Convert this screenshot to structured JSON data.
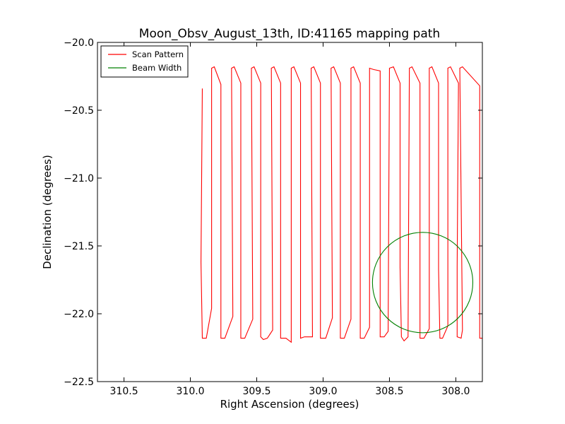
{
  "chart_data": {
    "type": "line",
    "title": "Moon_Obsv_August_13th, ID:41165 mapping path",
    "xlabel": "Right Ascension (degrees)",
    "ylabel": "Declination (degrees)",
    "xlim": [
      310.7,
      307.8
    ],
    "ylim": [
      -22.5,
      -20.0
    ],
    "x_inverted": true,
    "x_ticks": [
      310.5,
      310.0,
      309.5,
      309.0,
      308.5,
      308.0
    ],
    "x_tick_labels": [
      "310.5",
      "310.0",
      "309.5",
      "309.0",
      "308.5",
      "308.0"
    ],
    "y_ticks": [
      -20.0,
      -20.5,
      -21.0,
      -21.5,
      -22.0,
      -22.5
    ],
    "y_tick_labels": [
      "−20.0",
      "−20.5",
      "−21.0",
      "−21.5",
      "−22.0",
      "−22.5"
    ],
    "grid": false,
    "legend": {
      "placement": "top-left",
      "entries": [
        {
          "label": "Scan Pattern",
          "color": "#ff0000"
        },
        {
          "label": "Beam Width",
          "color": "#008000"
        }
      ]
    },
    "series": [
      {
        "name": "Scan Pattern",
        "color": "#ff0000",
        "kind": "polyline",
        "points": [
          [
            309.91,
            -20.34
          ],
          [
            309.92,
            -21.62
          ],
          [
            309.91,
            -22.18
          ],
          [
            309.88,
            -22.18
          ],
          [
            309.84,
            -21.96
          ],
          [
            309.84,
            -20.19
          ],
          [
            309.82,
            -20.18
          ],
          [
            309.77,
            -20.31
          ],
          [
            309.77,
            -21.64
          ],
          [
            309.77,
            -22.18
          ],
          [
            309.74,
            -22.18
          ],
          [
            309.68,
            -22.02
          ],
          [
            309.69,
            -20.19
          ],
          [
            309.67,
            -20.18
          ],
          [
            309.62,
            -20.3
          ],
          [
            309.62,
            -21.64
          ],
          [
            309.62,
            -22.18
          ],
          [
            309.59,
            -22.18
          ],
          [
            309.53,
            -22.04
          ],
          [
            309.54,
            -20.19
          ],
          [
            309.52,
            -20.18
          ],
          [
            309.47,
            -20.3
          ],
          [
            309.47,
            -21.65
          ],
          [
            309.47,
            -22.17
          ],
          [
            309.45,
            -22.19
          ],
          [
            309.42,
            -22.18
          ],
          [
            309.38,
            -22.12
          ],
          [
            309.39,
            -20.19
          ],
          [
            309.37,
            -20.18
          ],
          [
            309.32,
            -20.3
          ],
          [
            309.32,
            -21.65
          ],
          [
            309.32,
            -22.18
          ],
          [
            309.28,
            -22.18
          ],
          [
            309.24,
            -22.21
          ],
          [
            309.24,
            -20.19
          ],
          [
            309.22,
            -20.18
          ],
          [
            309.17,
            -20.3
          ],
          [
            309.17,
            -21.65
          ],
          [
            309.17,
            -22.18
          ],
          [
            309.14,
            -22.17
          ],
          [
            309.08,
            -22.17
          ],
          [
            309.09,
            -20.19
          ],
          [
            309.07,
            -20.18
          ],
          [
            309.02,
            -20.3
          ],
          [
            309.02,
            -21.65
          ],
          [
            309.02,
            -22.18
          ],
          [
            308.98,
            -22.18
          ],
          [
            308.93,
            -22.03
          ],
          [
            308.94,
            -20.19
          ],
          [
            308.92,
            -20.18
          ],
          [
            308.87,
            -20.3
          ],
          [
            308.87,
            -21.65
          ],
          [
            308.87,
            -22.18
          ],
          [
            308.84,
            -22.18
          ],
          [
            308.79,
            -22.04
          ],
          [
            308.79,
            -20.19
          ],
          [
            308.77,
            -20.18
          ],
          [
            308.72,
            -20.3
          ],
          [
            308.72,
            -21.65
          ],
          [
            308.72,
            -22.18
          ],
          [
            308.69,
            -22.18
          ],
          [
            308.65,
            -22.1
          ],
          [
            308.65,
            -20.19
          ],
          [
            308.62,
            -20.2
          ],
          [
            308.57,
            -20.21
          ],
          [
            308.57,
            -21.66
          ],
          [
            308.57,
            -22.17
          ],
          [
            308.54,
            -22.17
          ],
          [
            308.51,
            -22.13
          ],
          [
            308.5,
            -20.19
          ],
          [
            308.47,
            -20.18
          ],
          [
            308.42,
            -20.3
          ],
          [
            308.42,
            -21.66
          ],
          [
            308.41,
            -22.17
          ],
          [
            308.39,
            -22.2
          ],
          [
            308.36,
            -22.17
          ],
          [
            308.35,
            -20.19
          ],
          [
            308.33,
            -20.18
          ],
          [
            308.27,
            -20.3
          ],
          [
            308.27,
            -21.66
          ],
          [
            308.27,
            -22.18
          ],
          [
            308.24,
            -22.18
          ],
          [
            308.2,
            -22.11
          ],
          [
            308.2,
            -20.19
          ],
          [
            308.18,
            -20.18
          ],
          [
            308.13,
            -20.3
          ],
          [
            308.13,
            -21.67
          ],
          [
            308.12,
            -22.18
          ],
          [
            308.1,
            -22.18
          ],
          [
            308.06,
            -22.09
          ],
          [
            308.06,
            -20.19
          ],
          [
            308.04,
            -20.18
          ],
          [
            307.98,
            -20.3
          ],
          [
            307.99,
            -21.65
          ],
          [
            307.99,
            -22.17
          ],
          [
            307.96,
            -22.18
          ],
          [
            307.95,
            -22.12
          ],
          [
            307.97,
            -20.19
          ],
          [
            307.95,
            -20.18
          ],
          [
            307.82,
            -20.32
          ],
          [
            307.82,
            -21.72
          ],
          [
            307.82,
            -22.18
          ],
          [
            307.8,
            -22.18
          ]
        ]
      },
      {
        "name": "Beam Width",
        "color": "#008000",
        "kind": "circle",
        "center": [
          308.25,
          -21.77
        ],
        "radius_y": 0.37
      }
    ]
  }
}
